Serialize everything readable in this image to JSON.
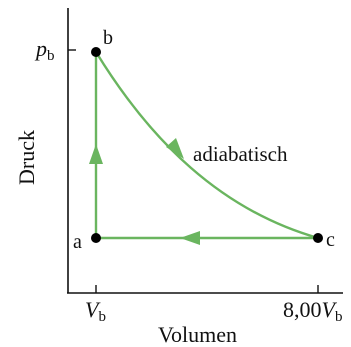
{
  "diagram": {
    "y_axis_label": "Druck",
    "x_axis_label": "Volumen",
    "y_tick": {
      "main": "p",
      "sub": "b"
    },
    "x_ticks": [
      {
        "main": "V",
        "sub": "b",
        "prefix": ""
      },
      {
        "main": "V",
        "sub": "b",
        "prefix": "8,00"
      }
    ],
    "points": [
      {
        "label": "a"
      },
      {
        "label": "b"
      },
      {
        "label": "c"
      }
    ],
    "process_label": "adiabatisch",
    "colors": {
      "path": "#6ab55f",
      "axis": "#111111",
      "point": "#000000"
    }
  }
}
